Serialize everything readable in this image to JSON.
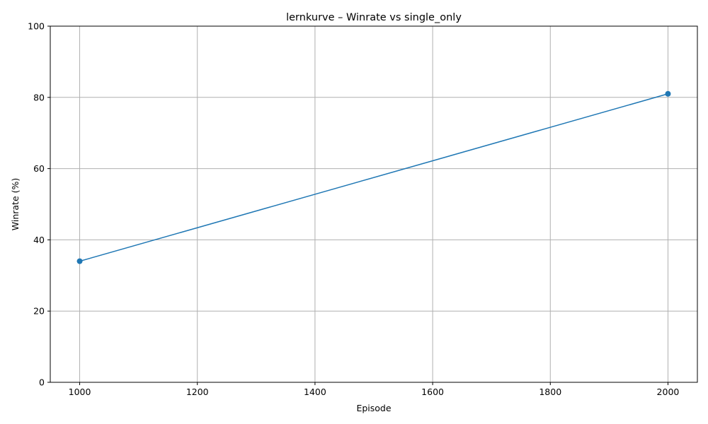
{
  "chart_data": {
    "type": "line",
    "title": "lernkurve – Winrate vs single_only",
    "xlabel": "Episode",
    "ylabel": "Winrate (%)",
    "xlim": [
      950,
      2050
    ],
    "ylim": [
      0,
      100
    ],
    "x_ticks": [
      1000,
      1200,
      1400,
      1600,
      1800,
      2000
    ],
    "y_ticks": [
      0,
      20,
      40,
      60,
      80,
      100
    ],
    "grid": true,
    "series": [
      {
        "color": "#1f77b4",
        "marker": "circle",
        "points": [
          {
            "x": 1000,
            "y": 34
          },
          {
            "x": 2000,
            "y": 81
          }
        ]
      }
    ]
  }
}
